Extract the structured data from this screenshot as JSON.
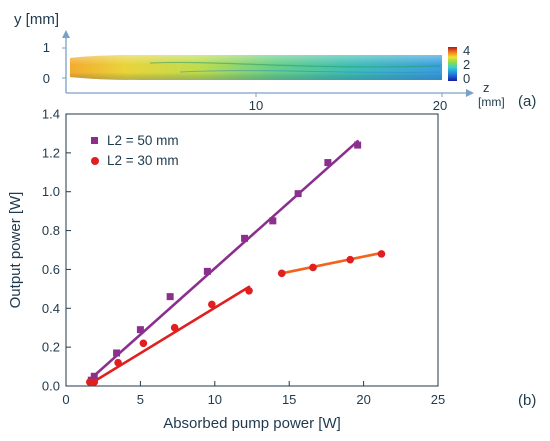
{
  "panel_a": {
    "label": "(a)",
    "ylabel": "y [mm]",
    "xaxis_name": "z",
    "xaxis_unit": "[mm]",
    "yticks": [
      "1",
      "0"
    ],
    "xticks": [
      "10",
      "20"
    ],
    "colorbar_ticks": [
      "4",
      "2",
      "0"
    ]
  },
  "panel_b": {
    "label": "(b)"
  },
  "colors": {
    "series_50": "#8b2f8f",
    "fit_50": "#8b2f8f",
    "series_30": "#e02020",
    "fit_30_low": "#e02020",
    "fit_30_high": "#f2641e",
    "axis": "#1f3a4d"
  },
  "chart_data": [
    {
      "type": "heatmap",
      "title": "",
      "ylabel": "y [mm]",
      "xlabel": "z [mm]",
      "xlim": [
        0,
        20
      ],
      "ylim": [
        -0.3,
        1
      ],
      "xticks": [
        10,
        20
      ],
      "yticks": [
        0,
        1
      ],
      "colorbar": {
        "range": [
          0,
          4
        ],
        "ticks": [
          0,
          2,
          4
        ]
      }
    },
    {
      "type": "scatter",
      "title": "",
      "xlabel": "Absorbed pump power [W]",
      "ylabel": "Output power [W]",
      "xlim": [
        0,
        25
      ],
      "ylim": [
        0,
        1.4
      ],
      "xticks": [
        "0",
        "5",
        "10",
        "15",
        "20",
        "25"
      ],
      "yticks": [
        "0.0",
        "0.2",
        "0.4",
        "0.6",
        "0.8",
        "1.0",
        "1.2",
        "1.4"
      ],
      "legend_position": "top-left",
      "grid": false,
      "series": [
        {
          "name": "L2 = 50 mm",
          "marker": "square",
          "x": [
            1.7,
            1.9,
            3.4,
            5.0,
            7.0,
            9.5,
            12.0,
            13.9,
            15.6,
            17.6,
            19.6
          ],
          "y": [
            0.03,
            0.05,
            0.17,
            0.29,
            0.46,
            0.59,
            0.76,
            0.85,
            0.99,
            1.15,
            1.24
          ]
        },
        {
          "name": "L2 = 30 mm",
          "marker": "circle",
          "x": [
            1.6,
            1.9,
            3.5,
            5.2,
            7.3,
            9.8,
            12.3,
            14.5,
            16.6,
            19.1,
            21.2
          ],
          "y": [
            0.02,
            0.02,
            0.12,
            0.22,
            0.3,
            0.42,
            0.49,
            0.58,
            0.61,
            0.65,
            0.68
          ]
        }
      ],
      "fit_lines": [
        {
          "series": "L2 = 50 mm",
          "x": [
            1.7,
            19.6
          ],
          "y": [
            0.04,
            1.26
          ]
        },
        {
          "series": "L2 = 30 mm",
          "x": [
            1.6,
            12.3
          ],
          "y": [
            0.01,
            0.51
          ]
        },
        {
          "series": "L2 = 30 mm",
          "x": [
            14.5,
            21.2
          ],
          "y": [
            0.58,
            0.685
          ]
        }
      ]
    }
  ]
}
